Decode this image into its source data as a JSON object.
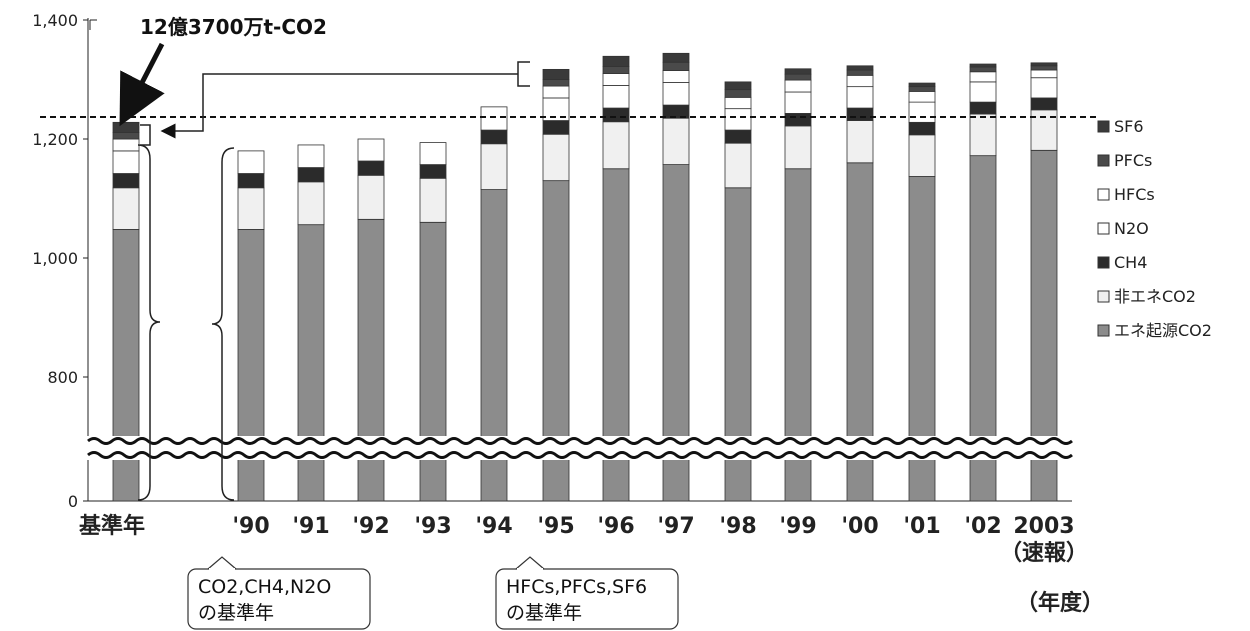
{
  "chart_data": {
    "type": "bar",
    "stacked": true,
    "categories": [
      "基準年",
      "'90",
      "'91",
      "'92",
      "'93",
      "'94",
      "'95",
      "'96",
      "'97",
      "'98",
      "'99",
      "'00",
      "'01",
      "'02",
      "2003"
    ],
    "category_sublabel": {
      "index": 14,
      "text": "（速報）"
    },
    "x_unit": "（年度）",
    "y_ticks": [
      "0",
      "800",
      "1,000",
      "1,200",
      "1,400"
    ],
    "ylim": [
      0,
      1400
    ],
    "axis_break_below": 700,
    "series": [
      {
        "name": "エネ起源CO2",
        "color": "#8c8c8c",
        "values": [
          1048,
          1048,
          1056,
          1065,
          1060,
          1115,
          1130,
          1150,
          1157,
          1118,
          1150,
          1160,
          1137,
          1172,
          1181
        ]
      },
      {
        "name": "非エネCO2",
        "color": "#f0f0f0",
        "values": [
          70,
          70,
          72,
          74,
          74,
          77,
          78,
          79,
          78,
          75,
          72,
          71,
          70,
          70,
          68
        ]
      },
      {
        "name": "CH4",
        "color": "#2b2b2b",
        "values": [
          24,
          24,
          24,
          24,
          23,
          23,
          23,
          23,
          22,
          22,
          21,
          21,
          21,
          20,
          20
        ]
      },
      {
        "name": "N2O",
        "color": "#ffffff",
        "values": [
          38,
          38,
          38,
          37,
          37,
          39,
          38,
          38,
          38,
          36,
          36,
          36,
          34,
          34,
          34
        ]
      },
      {
        "name": "HFCs",
        "color": "#ffffff",
        "values": [
          20,
          0,
          0,
          0,
          0,
          0,
          20,
          20,
          20,
          19,
          20,
          19,
          18,
          17,
          13
        ]
      },
      {
        "name": "PFCs",
        "color": "#4a4a4a",
        "values": [
          11,
          0,
          0,
          0,
          0,
          0,
          11,
          12,
          14,
          13,
          10,
          9,
          8,
          8,
          7
        ]
      },
      {
        "name": "SF6",
        "color": "#3a3a3a",
        "values": [
          17,
          0,
          0,
          0,
          0,
          0,
          17,
          17,
          15,
          13,
          9,
          7,
          6,
          5,
          5
        ]
      }
    ],
    "legend_order": [
      "SF6",
      "PFCs",
      "HFCs",
      "N2O",
      "CH4",
      "非エネCO2",
      "エネ起源CO2"
    ],
    "reference_line": 1237,
    "annotations": {
      "top_callout": "12億3700万t-CO2",
      "base_year_box_1": [
        "CO2,CH4,N2O",
        "の基準年"
      ],
      "base_year_box_2": [
        "HFCs,PFCs,SF6",
        "の基準年"
      ]
    }
  }
}
